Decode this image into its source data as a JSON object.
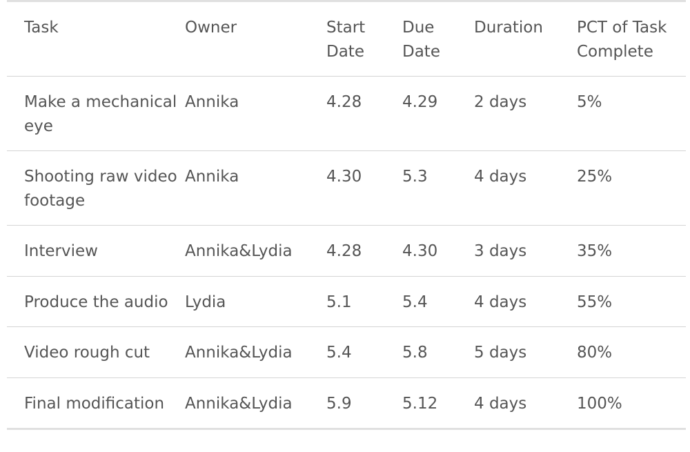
{
  "table": {
    "headers": [
      "Task",
      "Owner",
      "Start Date",
      "Due Date",
      "Duration",
      "PCT of Task Complete"
    ],
    "rows": [
      [
        "Make a mechanical eye",
        "Annika",
        "4.28",
        "4.29",
        "2 days",
        "5%"
      ],
      [
        "Shooting raw video footage",
        "Annika",
        "4.30",
        "5.3",
        "4 days",
        "25%"
      ],
      [
        "Interview",
        "Annika&Lydia",
        "4.28",
        "4.30",
        "3 days",
        "35%"
      ],
      [
        "Produce the audio",
        "Lydia",
        "5.1",
        "5.4",
        "4 days",
        "55%"
      ],
      [
        "Video rough cut",
        "Annika&Lydia",
        "5.4",
        "5.8",
        "5 days",
        "80%"
      ],
      [
        "Final modification",
        "Annika&Lydia",
        "5.9",
        "5.12",
        "4 days",
        "100%"
      ]
    ]
  }
}
